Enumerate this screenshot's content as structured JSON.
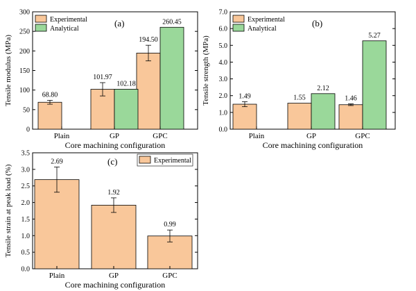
{
  "chart_data": [
    {
      "id": "a",
      "type": "bar",
      "panel_label": "(a)",
      "categories": [
        "Plain",
        "GP",
        "GPC"
      ],
      "series": [
        {
          "name": "Experimental",
          "color": "#f9c79a",
          "values": [
            68.8,
            101.97,
            194.5
          ],
          "labels": [
            "68.80",
            "101.97",
            "194.50"
          ],
          "errors": [
            5,
            17,
            20
          ]
        },
        {
          "name": "Analytical",
          "color": "#9ad89a",
          "values": [
            null,
            102.18,
            260.45
          ],
          "labels": [
            null,
            "102.18",
            "260.45"
          ],
          "errors": [
            0,
            0,
            0
          ]
        }
      ],
      "xlabel": "Core machining configuration",
      "ylabel": "Tensile modulus (MPa)",
      "ylim": [
        0,
        300
      ],
      "yticks": [
        "0",
        "50",
        "100",
        "150",
        "200",
        "250",
        "300"
      ],
      "legend": "top-left"
    },
    {
      "id": "b",
      "type": "bar",
      "panel_label": "(b)",
      "categories": [
        "Plain",
        "GP",
        "GPC"
      ],
      "series": [
        {
          "name": "Experimental",
          "color": "#f9c79a",
          "values": [
            1.49,
            1.55,
            1.46
          ],
          "labels": [
            "1.49",
            "1.55",
            "1.46"
          ],
          "errors": [
            0.15,
            0.0,
            0.05
          ]
        },
        {
          "name": "Analytical",
          "color": "#9ad89a",
          "values": [
            null,
            2.12,
            5.27
          ],
          "labels": [
            null,
            "2.12",
            "5.27"
          ],
          "errors": [
            0,
            0,
            0
          ]
        }
      ],
      "xlabel": "Core machining configuration",
      "ylabel": "Tensile strength (MPa)",
      "ylim": [
        0,
        7
      ],
      "yticks": [
        "0.0",
        "1.0",
        "2.0",
        "3.0",
        "4.0",
        "5.0",
        "6.0",
        "7.0"
      ],
      "legend": "top-left"
    },
    {
      "id": "c",
      "type": "bar",
      "panel_label": "(c)",
      "categories": [
        "Plain",
        "GP",
        "GPC"
      ],
      "series": [
        {
          "name": "Experimental",
          "color": "#f9c79a",
          "values": [
            2.69,
            1.92,
            0.99
          ],
          "labels": [
            "2.69",
            "1.92",
            "0.99"
          ],
          "errors": [
            0.38,
            0.22,
            0.18
          ]
        }
      ],
      "xlabel": "Core machining configuration",
      "ylabel": "Tensile strain at peak load (%)",
      "ylim": [
        0,
        3.5
      ],
      "yticks": [
        "0.0",
        "0.5",
        "1.0",
        "1.5",
        "2.0",
        "2.5",
        "3.0",
        "3.5"
      ],
      "legend": "top-right"
    }
  ]
}
